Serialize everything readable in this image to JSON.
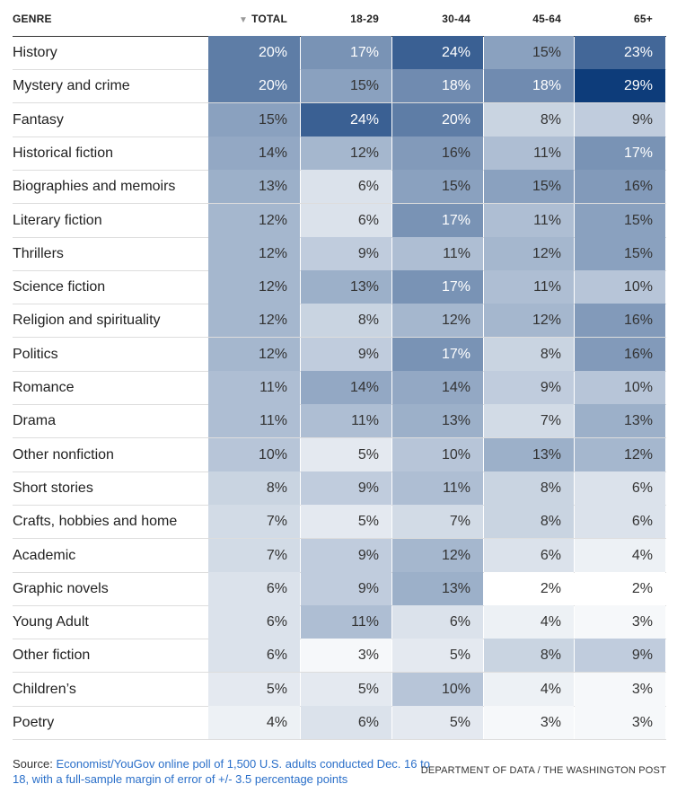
{
  "chart_data": {
    "type": "table",
    "title": "",
    "columns": [
      "GENRE",
      "TOTAL",
      "18-29",
      "30-44",
      "45-64",
      "65+"
    ],
    "sort_indicator": "▼",
    "rows": [
      {
        "genre": "History",
        "values": [
          20,
          17,
          24,
          15,
          23
        ]
      },
      {
        "genre": "Mystery and crime",
        "values": [
          20,
          15,
          18,
          18,
          29
        ]
      },
      {
        "genre": "Fantasy",
        "values": [
          15,
          24,
          20,
          8,
          9
        ]
      },
      {
        "genre": "Historical fiction",
        "values": [
          14,
          12,
          16,
          11,
          17
        ]
      },
      {
        "genre": "Biographies and memoirs",
        "values": [
          13,
          6,
          15,
          15,
          16
        ]
      },
      {
        "genre": "Literary fiction",
        "values": [
          12,
          6,
          17,
          11,
          15
        ]
      },
      {
        "genre": "Thrillers",
        "values": [
          12,
          9,
          11,
          12,
          15
        ]
      },
      {
        "genre": "Science fiction",
        "values": [
          12,
          13,
          17,
          11,
          10
        ]
      },
      {
        "genre": "Religion and spirituality",
        "values": [
          12,
          8,
          12,
          12,
          16
        ]
      },
      {
        "genre": "Politics",
        "values": [
          12,
          9,
          17,
          8,
          16
        ]
      },
      {
        "genre": "Romance",
        "values": [
          11,
          14,
          14,
          9,
          10
        ]
      },
      {
        "genre": "Drama",
        "values": [
          11,
          11,
          13,
          7,
          13
        ]
      },
      {
        "genre": "Other nonfiction",
        "values": [
          10,
          5,
          10,
          13,
          12
        ]
      },
      {
        "genre": "Short stories",
        "values": [
          8,
          9,
          11,
          8,
          6
        ]
      },
      {
        "genre": "Crafts, hobbies and home",
        "values": [
          7,
          5,
          7,
          8,
          6
        ]
      },
      {
        "genre": "Academic",
        "values": [
          7,
          9,
          12,
          6,
          4
        ]
      },
      {
        "genre": "Graphic novels",
        "values": [
          6,
          9,
          13,
          2,
          2
        ]
      },
      {
        "genre": "Young Adult",
        "values": [
          6,
          11,
          6,
          4,
          3
        ]
      },
      {
        "genre": "Other fiction",
        "values": [
          6,
          3,
          5,
          8,
          9
        ]
      },
      {
        "genre": "Children’s",
        "values": [
          5,
          5,
          10,
          4,
          3
        ]
      },
      {
        "genre": "Poetry",
        "values": [
          4,
          6,
          5,
          3,
          3
        ]
      }
    ],
    "value_suffix": "%",
    "color_scale": {
      "min": 2,
      "max": 29,
      "low_color": "#ffffff",
      "high_color": "#0d3c7a"
    }
  },
  "footer": {
    "source_label": "Source:",
    "source_text": "Economist/YouGov online poll of 1,500 U.S. adults conducted Dec. 16 to 18, with a full-sample margin of error of +/- 3.5 percentage points",
    "credit": "DEPARTMENT OF DATA / THE WASHINGTON POST"
  }
}
